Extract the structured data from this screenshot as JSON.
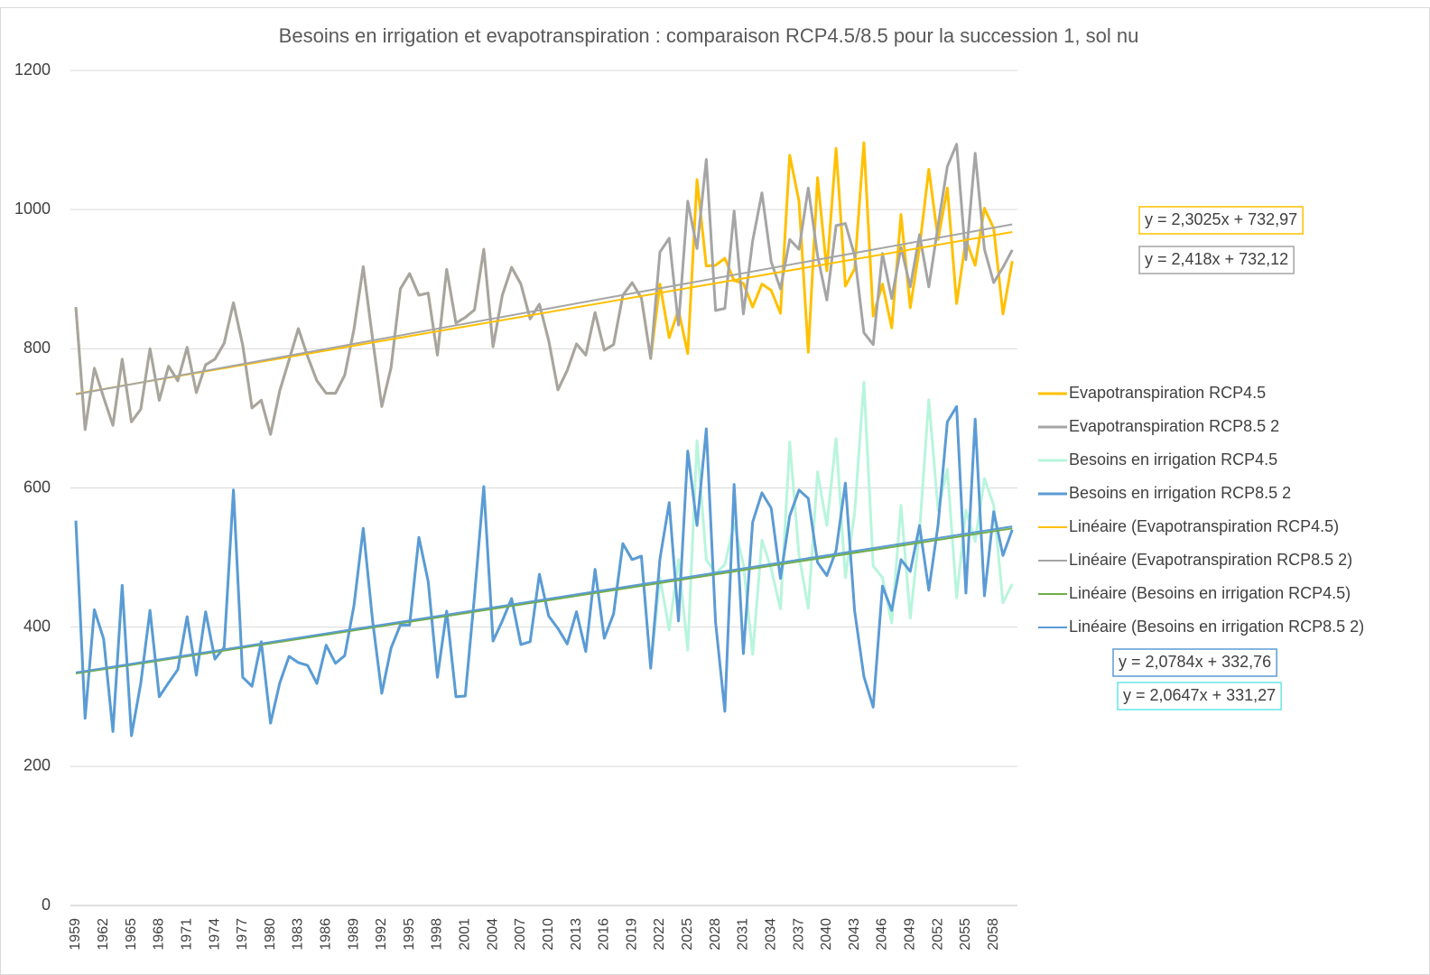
{
  "chart_data": {
    "type": "line",
    "title": "Besoins en irrigation et evapotranspiration : comparaison RCP4.5/8.5 pour la succession 1, sol nu",
    "categories": [
      "1959",
      null,
      null,
      "1962",
      null,
      null,
      "1965",
      null,
      null,
      "1968",
      null,
      null,
      "1971",
      null,
      null,
      "1974",
      null,
      null,
      "1977",
      null,
      null,
      "1980",
      null,
      null,
      "1983",
      null,
      null,
      "1986",
      null,
      null,
      "1989",
      null,
      null,
      "1992",
      null,
      null,
      "1995",
      null,
      null,
      "1998",
      null,
      null,
      "2001",
      null,
      null,
      "2004",
      null,
      null,
      "2007",
      null,
      null,
      "2010",
      null,
      null,
      "2013",
      null,
      null,
      "2016",
      null,
      null,
      "2019",
      null,
      null,
      "2022",
      null,
      null,
      "2025",
      null,
      null,
      "2028",
      null,
      null,
      "2031",
      null,
      null,
      "2034",
      null,
      null,
      "2037",
      null,
      null,
      "2040",
      null,
      null,
      "2043",
      null,
      null,
      "2046",
      null,
      null,
      "2049",
      null,
      null,
      "2052",
      null,
      null,
      "2055",
      null,
      null,
      "2058",
      null,
      null
    ],
    "series": [
      {
        "name": "Evapotranspiration RCP4.5",
        "color": "#ffc000",
        "values": [
          860,
          684,
          772,
          730,
          690,
          785,
          695,
          713,
          800,
          726,
          775,
          754,
          802,
          737,
          777,
          785,
          808,
          866,
          805,
          715,
          726,
          677,
          740,
          784,
          829,
          789,
          754,
          736,
          736,
          762,
          828,
          918,
          815,
          717,
          773,
          886,
          908,
          877,
          880,
          791,
          914,
          837,
          845,
          856,
          943,
          803,
          877,
          917,
          893,
          843,
          864,
          812,
          741,
          769,
          807,
          791,
          852,
          798,
          806,
          877,
          895,
          873,
          786,
          893,
          816,
          856,
          793,
          1043,
          919,
          920,
          930,
          898,
          894,
          860,
          893,
          884,
          851,
          1078,
          1012,
          795,
          1046,
          912,
          1088,
          890,
          915,
          1096,
          847,
          893,
          830,
          993,
          859,
          946,
          1058,
          957,
          1031,
          865,
          957,
          920,
          1002,
          973,
          850,
          926
        ]
      },
      {
        "name": "Evapotranspiration RCP8.5 2",
        "color": "#a5a5a5",
        "values": [
          860,
          684,
          772,
          730,
          690,
          785,
          695,
          713,
          800,
          726,
          775,
          754,
          802,
          737,
          777,
          785,
          808,
          866,
          805,
          715,
          726,
          677,
          740,
          784,
          829,
          789,
          754,
          736,
          736,
          762,
          828,
          918,
          815,
          717,
          773,
          886,
          908,
          877,
          880,
          791,
          914,
          837,
          845,
          856,
          943,
          803,
          877,
          917,
          893,
          843,
          864,
          812,
          741,
          769,
          807,
          791,
          852,
          798,
          806,
          877,
          895,
          873,
          786,
          939,
          959,
          834,
          1012,
          944,
          1072,
          855,
          858,
          998,
          850,
          955,
          1024,
          925,
          886,
          957,
          943,
          1031,
          934,
          870,
          977,
          980,
          934,
          823,
          806,
          937,
          872,
          946,
          889,
          964,
          889,
          977,
          1062,
          1094,
          928,
          1081,
          943,
          895,
          917,
          942
        ]
      },
      {
        "name": "Besoins en irrigation RCP4.5",
        "color": "#b8f5dc",
        "values": [
          553,
          269,
          425,
          383,
          250,
          460,
          244,
          319,
          424,
          300,
          320,
          339,
          415,
          331,
          422,
          354,
          371,
          597,
          328,
          315,
          379,
          262,
          320,
          358,
          349,
          345,
          319,
          374,
          348,
          359,
          431,
          542,
          410,
          305,
          370,
          403,
          403,
          529,
          466,
          328,
          423,
          300,
          301,
          445,
          602,
          380,
          409,
          441,
          375,
          379,
          476,
          416,
          398,
          376,
          422,
          365,
          483,
          384,
          419,
          520,
          497,
          502,
          341,
          471,
          396,
          497,
          367,
          668,
          497,
          477,
          490,
          549,
          490,
          361,
          525,
          484,
          426,
          666,
          503,
          427,
          623,
          546,
          671,
          471,
          564,
          752,
          488,
          471,
          406,
          575,
          413,
          538,
          727,
          568,
          627,
          442,
          568,
          523,
          614,
          575,
          435,
          462
        ]
      },
      {
        "name": "Besoins en irrigation RCP8.5 2",
        "color": "#5b9bd5",
        "values": [
          553,
          269,
          425,
          383,
          250,
          460,
          244,
          319,
          424,
          300,
          320,
          339,
          415,
          331,
          422,
          354,
          371,
          597,
          328,
          315,
          379,
          262,
          320,
          358,
          349,
          345,
          319,
          374,
          348,
          359,
          431,
          542,
          410,
          305,
          370,
          403,
          403,
          529,
          466,
          328,
          423,
          300,
          301,
          445,
          602,
          380,
          409,
          441,
          375,
          379,
          476,
          416,
          398,
          376,
          422,
          365,
          483,
          384,
          419,
          520,
          497,
          502,
          341,
          498,
          579,
          409,
          653,
          546,
          685,
          407,
          279,
          605,
          362,
          551,
          593,
          571,
          470,
          560,
          597,
          585,
          493,
          474,
          510,
          607,
          423,
          329,
          285,
          459,
          424,
          497,
          480,
          546,
          453,
          547,
          695,
          717,
          449,
          699,
          445,
          566,
          503,
          540
        ]
      }
    ],
    "trendlines": [
      {
        "name": "Linéaire (Evapotranspiration RCP4.5)",
        "color": "#ffc000",
        "slope": 2.3025,
        "intercept": 732.97,
        "equation": "y = 2,3025x + 732,97",
        "box_color": "#ffc000"
      },
      {
        "name": "Linéaire (Evapotranspiration RCP8.5 2)",
        "color": "#a5a5a5",
        "slope": 2.418,
        "intercept": 732.12,
        "equation": "y = 2,418x + 732,12",
        "box_color": "#a5a5a5"
      },
      {
        "name": "Linéaire (Besoins en irrigation RCP4.5)",
        "color": "#70ad47",
        "slope": 2.0647,
        "intercept": 331.27,
        "equation": "y = 2,0647x + 331,27",
        "box_color": "#66e6e6"
      },
      {
        "name": "Linéaire (Besoins en irrigation RCP8.5 2)",
        "color": "#5b9bd5",
        "slope": 2.0784,
        "intercept": 332.76,
        "equation": "y = 2,0784x + 332,76",
        "box_color": "#5b9bd5"
      }
    ],
    "ylim": [
      0,
      1200
    ],
    "yticks": [
      0,
      200,
      400,
      600,
      800,
      1000,
      1200
    ],
    "grid": true,
    "legend": "right"
  }
}
